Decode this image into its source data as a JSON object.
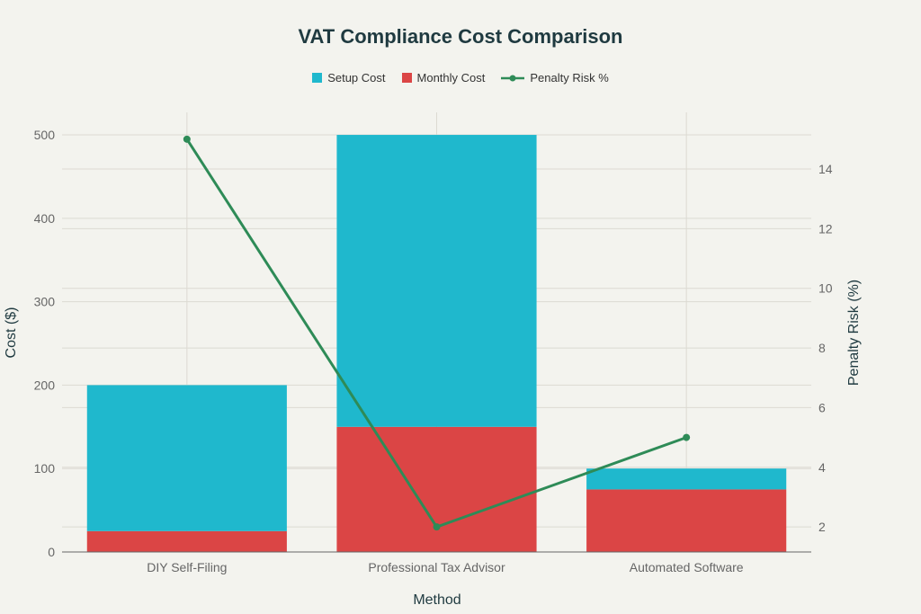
{
  "chart_data": {
    "type": "bar",
    "barmode": "stack",
    "title": "VAT Compliance Cost Comparison",
    "xlabel": "Method",
    "ylabel": "Cost ($)",
    "y2label": "Penalty Risk (%)",
    "categories": [
      "DIY Self-Filing",
      "Professional Tax Advisor",
      "Automated Software"
    ],
    "series": [
      {
        "name": "Monthly Cost",
        "type": "bar",
        "color": "#db4545",
        "values": [
          25,
          150,
          75
        ]
      },
      {
        "name": "Setup Cost",
        "type": "bar",
        "color": "#1fb8cd",
        "values": [
          175,
          350,
          25
        ]
      },
      {
        "name": "Penalty Risk %",
        "type": "line",
        "axis": "y2",
        "color": "#2e8b57",
        "values": [
          15,
          2,
          5
        ]
      }
    ],
    "legend_order": [
      "Setup Cost",
      "Monthly Cost",
      "Penalty Risk %"
    ],
    "ylim": [
      0,
      527
    ],
    "y2lim": [
      1.16,
      15.9
    ],
    "yticks": [
      0,
      100,
      200,
      300,
      400,
      500
    ],
    "y2ticks": [
      2,
      4,
      6,
      8,
      10,
      12,
      14
    ],
    "grid": true,
    "legend_position": "top-center"
  }
}
